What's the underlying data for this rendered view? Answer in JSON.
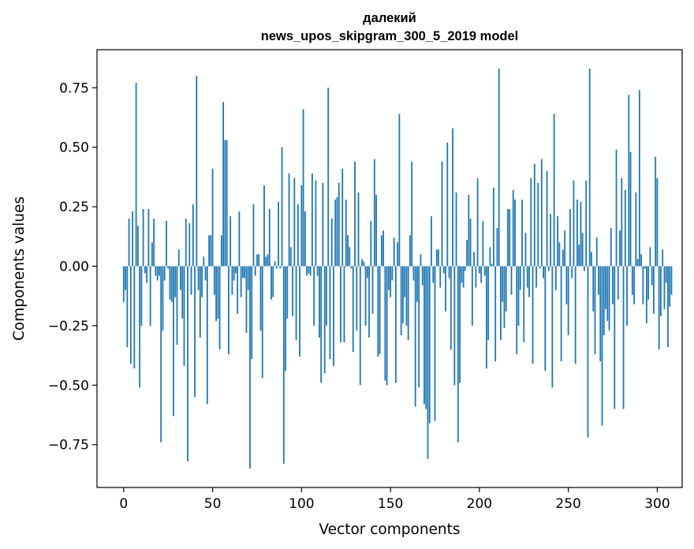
{
  "chart_data": {
    "type": "bar",
    "title": "далекий",
    "subtitle": "news_upos_skipgram_300_5_2019 model",
    "xlabel": "Vector components",
    "ylabel": "Components values",
    "xlim": [
      -15,
      314
    ],
    "ylim": [
      -0.93,
      0.91
    ],
    "xticks": [
      0,
      50,
      100,
      150,
      200,
      250,
      300
    ],
    "xtick_labels": [
      "0",
      "50",
      "100",
      "150",
      "200",
      "250",
      "300"
    ],
    "yticks": [
      -0.75,
      -0.5,
      -0.25,
      0.0,
      0.25,
      0.5,
      0.75
    ],
    "ytick_labels": [
      "−0.75",
      "−0.50",
      "−0.25",
      "0.00",
      "0.25",
      "0.50",
      "0.75"
    ],
    "grid": false,
    "bar_color": "#1f77b4",
    "values": [
      -0.15,
      -0.1,
      -0.34,
      0.2,
      -0.41,
      0.23,
      -0.43,
      0.77,
      0.17,
      -0.51,
      -0.25,
      0.24,
      -0.03,
      -0.07,
      0.24,
      -0.25,
      0.1,
      0.2,
      -0.04,
      -0.06,
      -0.04,
      -0.74,
      -0.27,
      -0.06,
      0.19,
      -0.01,
      -0.14,
      -0.15,
      -0.63,
      -0.13,
      -0.33,
      0.07,
      -0.1,
      -0.22,
      -0.42,
      0.2,
      -0.82,
      0.18,
      -0.12,
      0.26,
      -0.55,
      0.8,
      -0.1,
      -0.3,
      -0.13,
      0.04,
      -0.06,
      -0.58,
      0.13,
      0.13,
      0.41,
      -0.12,
      -0.23,
      -0.22,
      -0.35,
      0.13,
      0.69,
      0.53,
      0.53,
      -0.37,
      0.21,
      -0.12,
      -0.06,
      -0.03,
      -0.2,
      0.23,
      -0.13,
      -0.05,
      -0.05,
      -0.28,
      -0.1,
      -0.85,
      -0.39,
      0.26,
      -0.04,
      0.05,
      0.05,
      -0.27,
      -0.47,
      0.34,
      0.04,
      0.05,
      0.24,
      -0.14,
      -0.13,
      0.02,
      -0.01,
      0.27,
      -0.01,
      0.5,
      -0.83,
      -0.44,
      -0.22,
      0.39,
      0.08,
      -0.21,
      0.37,
      -0.31,
      0.26,
      -0.38,
      0.34,
      0.66,
      0.23,
      -0.04,
      -0.03,
      -0.04,
      0.39,
      -0.25,
      0.36,
      -0.04,
      -0.3,
      -0.49,
      0.35,
      -0.45,
      -0.25,
      0.75,
      -0.39,
      0.2,
      -0.42,
      0.28,
      0.29,
      0.35,
      -0.32,
      0.41,
      -0.32,
      0.28,
      0.13,
      0.08,
      -0.01,
      -0.36,
      0.44,
      -0.27,
      0.31,
      -0.5,
      0.03,
      0.02,
      -0.25,
      -0.05,
      -0.3,
      0.19,
      -0.2,
      0.45,
      0.3,
      -0.38,
      -0.37,
      0.13,
      0.15,
      -0.48,
      -0.5,
      -0.1,
      -0.13,
      -0.06,
      0.12,
      -0.49,
      0.1,
      0.64,
      -0.29,
      -0.24,
      -0.13,
      -0.25,
      -0.31,
      0.13,
      0.44,
      -0.06,
      -0.59,
      -0.15,
      -0.51,
      0.05,
      -0.08,
      -0.58,
      -0.6,
      -0.81,
      -0.66,
      0.21,
      -0.07,
      -0.65,
      0.07,
      0.07,
      -0.09,
      0.44,
      -0.03,
      -0.19,
      0.52,
      -0.05,
      -0.35,
      0.58,
      -0.5,
      0.31,
      -0.74,
      -0.49,
      -0.07,
      -0.09,
      -0.02,
      0.11,
      0.3,
      0.2,
      -0.25,
      0.06,
      -0.09,
      0.37,
      -0.03,
      -0.07,
      0.19,
      -0.04,
      -0.43,
      -0.31,
      0.08,
      0.01,
      0.33,
      -0.4,
      0.16,
      0.83,
      -0.31,
      -0.15,
      -0.26,
      -0.19,
      0.24,
      0.24,
      -0.12,
      0.32,
      0.28,
      -0.37,
      -0.25,
      -0.1,
      0.28,
      -0.32,
      0.14,
      -0.09,
      -0.13,
      0.37,
      -0.41,
      0.43,
      -0.09,
      0.35,
      -0.01,
      0.45,
      -0.05,
      -0.44,
      0.4,
      -0.02,
      0.22,
      -0.51,
      0.64,
      -0.1,
      0.21,
      0.1,
      -0.4,
      0.07,
      0.15,
      -0.16,
      -0.29,
      0.24,
      -0.05,
      0.36,
      -0.41,
      0.28,
      0.09,
      0.27,
      0.14,
      -0.02,
      0.36,
      -0.72,
      0.83,
      0.06,
      -0.19,
      -0.37,
      0.12,
      -0.12,
      -0.4,
      -0.67,
      -0.29,
      -0.18,
      -0.23,
      -0.27,
      0.16,
      -0.16,
      -0.6,
      0.49,
      -0.14,
      0.15,
      0.37,
      -0.6,
      0.32,
      -0.25,
      0.72,
      0.48,
      -0.12,
      -0.16,
      0.31,
      0.03,
      0.74,
      0.05,
      -0.16,
      -0.01,
      -0.24,
      -0.14,
      0.08,
      -0.08,
      -0.2,
      0.46,
      0.37,
      -0.35,
      -0.21,
      0.07,
      -0.18,
      -0.07,
      -0.34,
      -0.17,
      -0.12
    ]
  }
}
